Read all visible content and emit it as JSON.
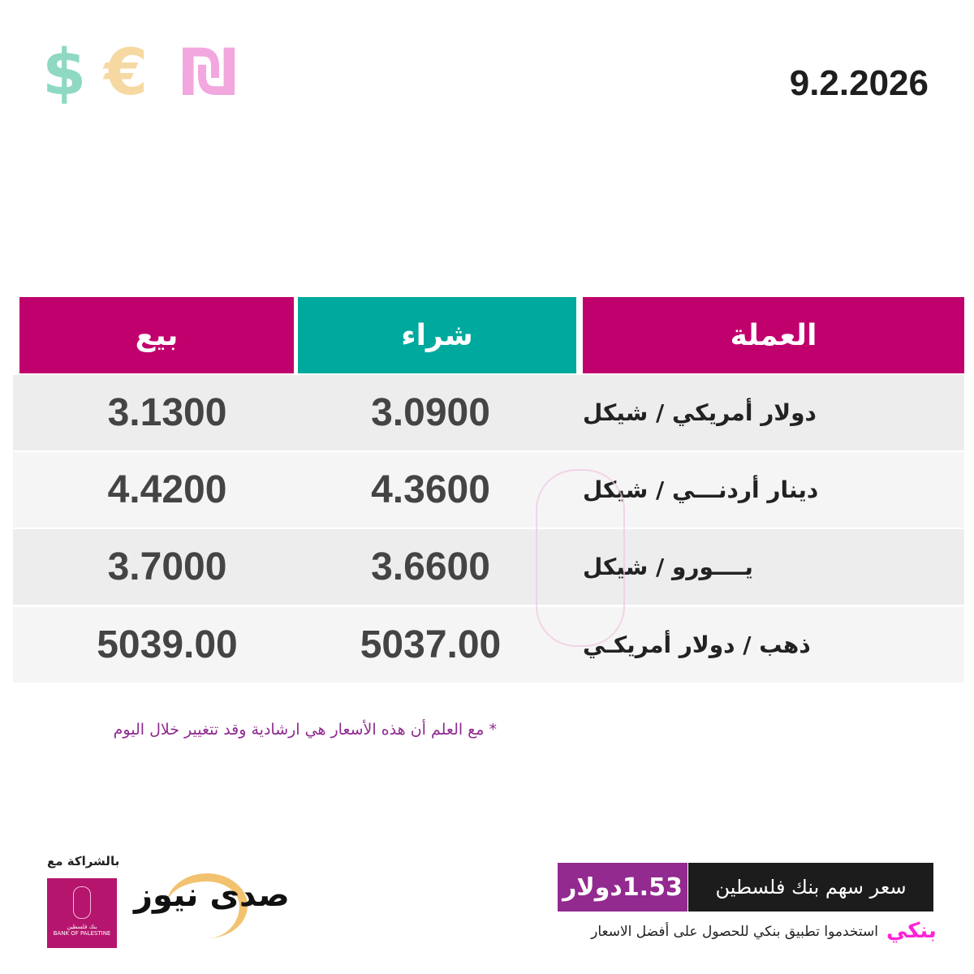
{
  "header": {
    "date": "9.2.2026",
    "currency_icons": [
      {
        "name": "dollar-icon",
        "glyph": "$",
        "color": "#8fd9c4"
      },
      {
        "name": "euro-icon",
        "glyph": "€",
        "color": "#f6d9a2"
      },
      {
        "name": "shekel-icon",
        "glyph": "₪",
        "color": "#f2a7df"
      }
    ]
  },
  "table": {
    "columns": {
      "sell": "بيع",
      "buy": "شراء",
      "currency": "العملة"
    },
    "colors": {
      "pink": "#c0006c",
      "teal": "#00a99d"
    },
    "rows": [
      {
        "currency": "دولار أمريكي / شيكل",
        "buy": "3.0900",
        "sell": "3.1300"
      },
      {
        "currency": "دينار أردنـــي / شيكل",
        "buy": "4.3600",
        "sell": "4.4200"
      },
      {
        "currency": "يــــورو / شيكل",
        "buy": "3.6600",
        "sell": "3.7000"
      },
      {
        "currency": "ذهب / دولار أمريكـي",
        "buy": "5037.00",
        "sell": "5039.00"
      }
    ]
  },
  "note": "* مع العلم أن هذه الأسعار هي ارشادية وقد تتغيير خلال اليوم",
  "share": {
    "label": "سعر سهم بنك فلسطين",
    "value": "1.53دولار"
  },
  "app": {
    "logo": "بنكي",
    "text": "استخدموا تطبيق بنكي للحصول على أفضل الاسعار"
  },
  "partner": {
    "label": "بالشراكة مع",
    "bank_logo": "بنك فلسطين BANK OF PALESTINE",
    "news_logo": "صدى نيوز"
  }
}
